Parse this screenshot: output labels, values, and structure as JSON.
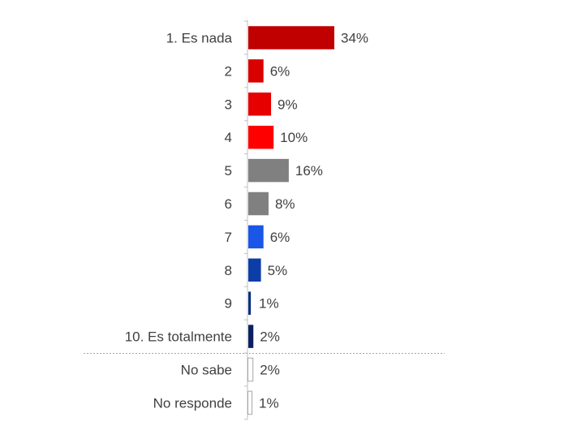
{
  "chart_data": {
    "type": "bar",
    "orientation": "horizontal",
    "categories": [
      "1. Es nada",
      "2",
      "3",
      "4",
      "5",
      "6",
      "7",
      "8",
      "9",
      "10. Es totalmente",
      "No sabe",
      "No responde"
    ],
    "values": [
      34,
      6,
      9,
      10,
      16,
      8,
      6,
      5,
      1,
      2,
      2,
      1
    ],
    "value_labels": [
      "34%",
      "6%",
      "9%",
      "10%",
      "16%",
      "8%",
      "6%",
      "5%",
      "1%",
      "2%",
      "2%",
      "1%"
    ],
    "bar_colors": [
      "#c00000",
      "#d90000",
      "#e60000",
      "#ff0000",
      "#808080",
      "#808080",
      "#1a56e8",
      "#0d3ea8",
      "#0a2e80",
      "#0a2060",
      "#ffffff",
      "#ffffff"
    ],
    "bar_outline_colors": [
      "none",
      "none",
      "none",
      "none",
      "none",
      "none",
      "none",
      "none",
      "none",
      "none",
      "#a6a6a6",
      "#a6a6a6"
    ],
    "separator_after_index": 9,
    "separator_style": "dotted",
    "xlim": [
      0,
      34
    ],
    "title": "",
    "xlabel": "",
    "ylabel": "",
    "grid": false,
    "legend": "none"
  }
}
